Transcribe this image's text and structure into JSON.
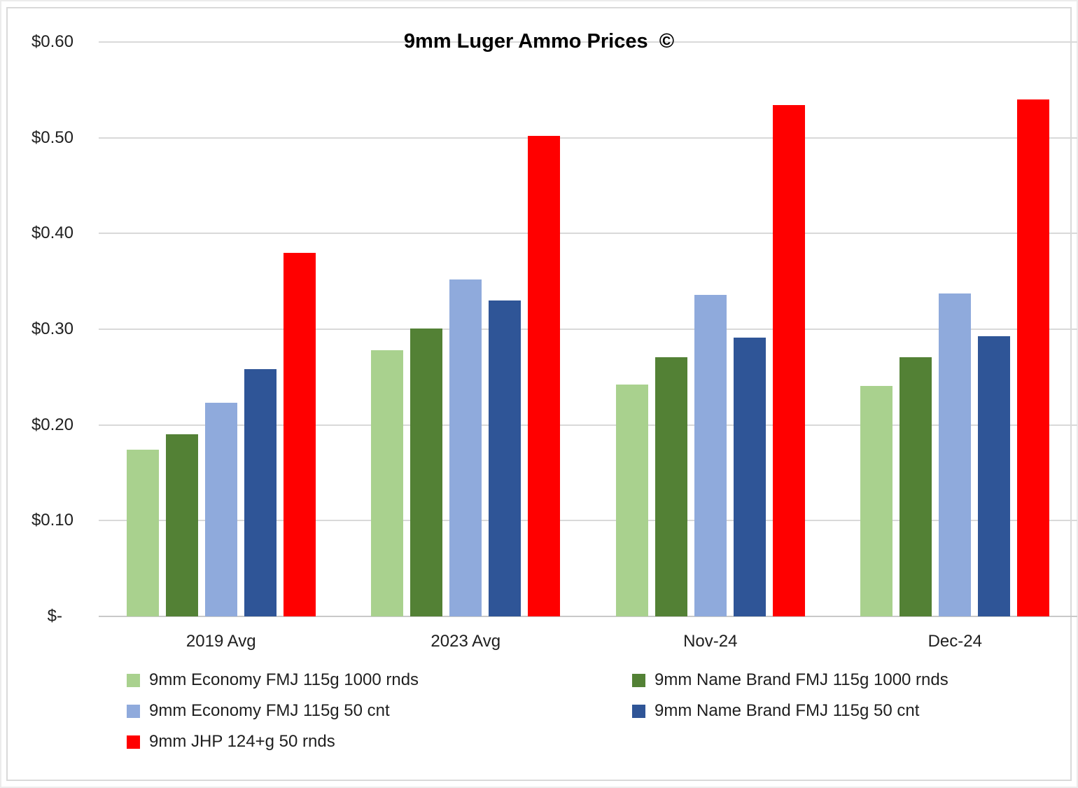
{
  "chart_data": {
    "type": "bar",
    "title": "9mm Luger Ammo Prices  ©",
    "categories": [
      "2019 Avg",
      "2023 Avg",
      "Nov-24",
      "Dec-24"
    ],
    "series": [
      {
        "name": "9mm Economy FMJ 115g 1000 rnds",
        "color": "#A9D18E",
        "values": [
          0.174,
          0.278,
          0.242,
          0.241
        ]
      },
      {
        "name": "9mm Name Brand FMJ 115g 1000 rnds",
        "color": "#538135",
        "values": [
          0.19,
          0.301,
          0.271,
          0.271
        ]
      },
      {
        "name": "9mm Economy FMJ 115g 50 cnt",
        "color": "#8FAADC",
        "values": [
          0.223,
          0.352,
          0.336,
          0.337
        ]
      },
      {
        "name": "9mm Name Brand FMJ 115g 50 cnt",
        "color": "#2F5597",
        "values": [
          0.258,
          0.33,
          0.291,
          0.293
        ]
      },
      {
        "name": "9mm JHP 124+g 50 rnds",
        "color": "#FF0000",
        "values": [
          0.38,
          0.502,
          0.534,
          0.54
        ]
      }
    ],
    "y_ticks": [
      {
        "label": "$0.60",
        "value": 0.6
      },
      {
        "label": "$0.50",
        "value": 0.5
      },
      {
        "label": "$0.40",
        "value": 0.4
      },
      {
        "label": "$0.30",
        "value": 0.3
      },
      {
        "label": "$0.20",
        "value": 0.2
      },
      {
        "label": "$0.10",
        "value": 0.1
      },
      {
        "label": "$-",
        "value": 0.0
      }
    ],
    "ylim": [
      0,
      0.6
    ],
    "grid": true,
    "legend_position": "bottom",
    "colors": {
      "gridline": "#D9D9D9",
      "axis": "#C9C9C9",
      "frame_border": "#D9D9D9",
      "title_text": "#000000",
      "label_text": "#1F1F1F"
    }
  }
}
